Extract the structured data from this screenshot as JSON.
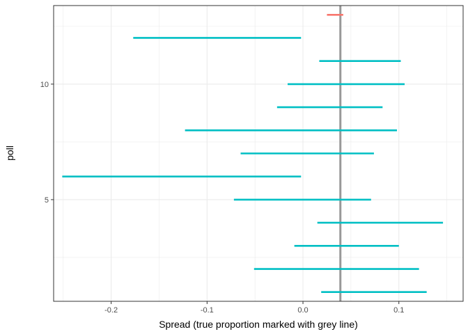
{
  "chart_data": {
    "type": "errorbar",
    "xlabel": "Spread (true proportion marked with grey line)",
    "ylabel": "poll",
    "xlim": [
      -0.26,
      0.167
    ],
    "ylim": [
      0.6,
      13.4
    ],
    "x_ticks": [
      -0.2,
      -0.1,
      0.0,
      0.1
    ],
    "x_tick_labels": [
      "-0.2",
      "-0.1",
      "0.0",
      "0.1"
    ],
    "y_ticks": [
      5,
      10
    ],
    "y_tick_labels": [
      "5",
      "10"
    ],
    "reference_line": {
      "x": 0.039,
      "color": "#999999"
    },
    "grid": true,
    "series": [
      {
        "color": "#00BFC4",
        "intervals": [
          {
            "poll": 1,
            "low": 0.019,
            "high": 0.129
          },
          {
            "poll": 2,
            "low": -0.051,
            "high": 0.121
          },
          {
            "poll": 3,
            "low": -0.009,
            "high": 0.1
          },
          {
            "poll": 4,
            "low": 0.015,
            "high": 0.146
          },
          {
            "poll": 5,
            "low": -0.072,
            "high": 0.071
          },
          {
            "poll": 6,
            "low": -0.251,
            "high": -0.002
          },
          {
            "poll": 7,
            "low": -0.065,
            "high": 0.074
          },
          {
            "poll": 8,
            "low": -0.123,
            "high": 0.098
          },
          {
            "poll": 9,
            "low": -0.027,
            "high": 0.083
          },
          {
            "poll": 10,
            "low": -0.016,
            "high": 0.106
          },
          {
            "poll": 11,
            "low": 0.017,
            "high": 0.102
          },
          {
            "poll": 12,
            "low": -0.177,
            "high": -0.002
          }
        ]
      },
      {
        "color": "#F8766D",
        "intervals": [
          {
            "poll": 13,
            "low": 0.025,
            "high": 0.042
          }
        ]
      }
    ]
  }
}
